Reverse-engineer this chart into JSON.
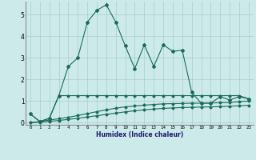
{
  "xlabel": "Humidex (Indice chaleur)",
  "bg_color": "#cceaea",
  "grid_color": "#aacccc",
  "line_color": "#1a6b5a",
  "xlim": [
    -0.5,
    23.5
  ],
  "ylim": [
    -0.1,
    5.6
  ],
  "yticks": [
    0,
    1,
    2,
    3,
    4,
    5
  ],
  "xticks": [
    0,
    1,
    2,
    3,
    4,
    5,
    6,
    7,
    8,
    9,
    10,
    11,
    12,
    13,
    14,
    15,
    16,
    17,
    18,
    19,
    20,
    21,
    22,
    23
  ],
  "line1_x": [
    0,
    1,
    2,
    3,
    4,
    5,
    6,
    7,
    8,
    9,
    10,
    11,
    12,
    13,
    14,
    15,
    16,
    17,
    18,
    19,
    20,
    21,
    22,
    23
  ],
  "line1_y": [
    0.4,
    0.05,
    0.2,
    1.25,
    2.6,
    3.0,
    4.65,
    5.2,
    5.45,
    4.65,
    3.55,
    2.5,
    3.6,
    2.6,
    3.6,
    3.3,
    3.35,
    1.4,
    0.9,
    0.9,
    1.2,
    1.05,
    1.2,
    1.1
  ],
  "line2_x": [
    0,
    1,
    2,
    3,
    4,
    5,
    6,
    7,
    8,
    9,
    10,
    11,
    12,
    13,
    14,
    15,
    16,
    17,
    18,
    19,
    20,
    21,
    22,
    23
  ],
  "line2_y": [
    0.4,
    0.05,
    0.2,
    1.25,
    1.25,
    1.25,
    1.25,
    1.25,
    1.25,
    1.25,
    1.25,
    1.25,
    1.25,
    1.25,
    1.25,
    1.25,
    1.25,
    1.25,
    1.25,
    1.25,
    1.25,
    1.25,
    1.25,
    1.1
  ],
  "line3_x": [
    0,
    1,
    2,
    3,
    4,
    5,
    6,
    7,
    8,
    9,
    10,
    11,
    12,
    13,
    14,
    15,
    16,
    17,
    18,
    19,
    20,
    21,
    22,
    23
  ],
  "line3_y": [
    0.0,
    0.05,
    0.12,
    0.18,
    0.25,
    0.33,
    0.42,
    0.51,
    0.59,
    0.67,
    0.73,
    0.77,
    0.81,
    0.84,
    0.87,
    0.88,
    0.89,
    0.9,
    0.9,
    0.91,
    0.92,
    0.93,
    0.97,
    1.0
  ],
  "line4_x": [
    0,
    1,
    2,
    3,
    4,
    5,
    6,
    7,
    8,
    9,
    10,
    11,
    12,
    13,
    14,
    15,
    16,
    17,
    18,
    19,
    20,
    21,
    22,
    23
  ],
  "line4_y": [
    0.0,
    0.02,
    0.06,
    0.1,
    0.15,
    0.2,
    0.26,
    0.32,
    0.38,
    0.44,
    0.5,
    0.55,
    0.59,
    0.63,
    0.66,
    0.68,
    0.7,
    0.71,
    0.72,
    0.73,
    0.74,
    0.76,
    0.78,
    0.8
  ]
}
